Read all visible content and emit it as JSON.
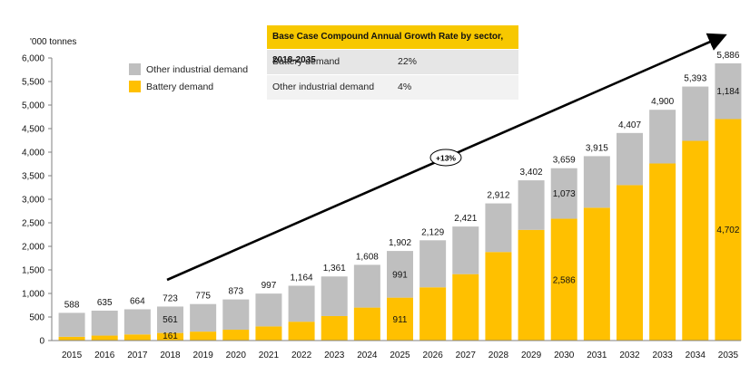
{
  "chart_data": {
    "type": "bar",
    "stacked": true,
    "unit_label": "'000 tonnes",
    "categories": [
      "2015",
      "2016",
      "2017",
      "2018",
      "2019",
      "2020",
      "2021",
      "2022",
      "2023",
      "2024",
      "2025",
      "2026",
      "2027",
      "2028",
      "2029",
      "2030",
      "2031",
      "2032",
      "2033",
      "2034",
      "2035"
    ],
    "totals": [
      588,
      635,
      664,
      723,
      775,
      873,
      997,
      1164,
      1361,
      1608,
      1902,
      2129,
      2421,
      2912,
      3402,
      3659,
      3915,
      4407,
      4900,
      5393,
      5886
    ],
    "series": [
      {
        "name": "Battery demand",
        "color": "#ffc000",
        "values": [
          80,
          105,
          130,
          161,
          190,
          230,
          300,
          400,
          520,
          700,
          911,
          1130,
          1410,
          1880,
          2350,
          2586,
          2820,
          3300,
          3760,
          4240,
          4702
        ]
      },
      {
        "name": "Other industrial demand",
        "color": "#bfbfbf",
        "values": [
          508,
          530,
          534,
          561,
          585,
          643,
          697,
          764,
          841,
          908,
          991,
          999,
          1011,
          1032,
          1052,
          1073,
          1095,
          1107,
          1140,
          1153,
          1184
        ]
      }
    ],
    "ylim": [
      0,
      6000
    ],
    "yticks": [
      0,
      500,
      1000,
      1500,
      2000,
      2500,
      3000,
      3500,
      4000,
      4500,
      5000,
      5500,
      6000
    ],
    "ytick_labels": [
      "0",
      "500",
      "1,000",
      "1,500",
      "2,000",
      "2,500",
      "3,000",
      "3,500",
      "4,000",
      "4,500",
      "5,000",
      "5,500",
      "6,000"
    ],
    "total_labels": [
      "588",
      "635",
      "664",
      "723",
      "775",
      "873",
      "997",
      "1,164",
      "1,361",
      "1,608",
      "1,902",
      "2,129",
      "2,421",
      "2,912",
      "3,402",
      "3,659",
      "3,915",
      "4,407",
      "4,900",
      "5,393",
      "5,886"
    ],
    "segment_labels": [
      {
        "index": 3,
        "series": 0,
        "text": "161"
      },
      {
        "index": 3,
        "series": 1,
        "text": "561"
      },
      {
        "index": 10,
        "series": 0,
        "text": "911"
      },
      {
        "index": 10,
        "series": 1,
        "text": "991"
      },
      {
        "index": 15,
        "series": 0,
        "text": "2,586"
      },
      {
        "index": 15,
        "series": 1,
        "text": "1,073"
      },
      {
        "index": 20,
        "series": 0,
        "text": "4,702"
      },
      {
        "index": 20,
        "series": 1,
        "text": "1,184"
      }
    ],
    "trend_annotation": "+13%",
    "legend": {
      "placement": "top-left",
      "entries": [
        "Other industrial demand",
        "Battery demand"
      ]
    },
    "grid": false
  },
  "cagr_table": {
    "title": "Base Case Compound Annual Growth Rate by sector, 2018-2035",
    "rows": [
      {
        "sector": "Battery demand",
        "rate": "22%"
      },
      {
        "sector": "Other industrial demand",
        "rate": "4%"
      }
    ]
  }
}
